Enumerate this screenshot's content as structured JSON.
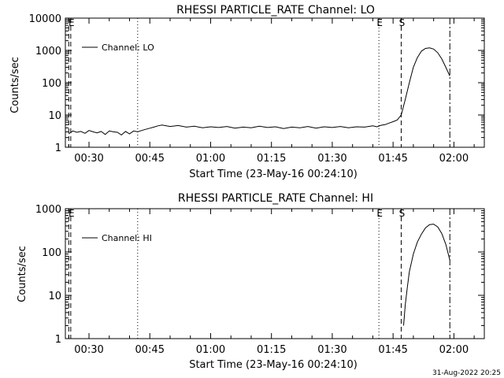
{
  "footer": {
    "timestamp": "31-Aug-2022 20:25"
  },
  "chart_data": [
    {
      "type": "line",
      "title": "RHESSI PARTICLE_RATE Channel: LO",
      "xlabel": "Start Time (23-May-16 00:24:10)",
      "ylabel": "Counts/sec",
      "yscale": "log",
      "ylim": [
        1,
        10000
      ],
      "xlim_minutes": [
        24.17,
        127.5
      ],
      "x_ticks": [
        30,
        45,
        60,
        75,
        90,
        105,
        120
      ],
      "x_tick_labels": [
        "00:30",
        "00:45",
        "01:00",
        "01:15",
        "01:30",
        "01:45",
        "02:00"
      ],
      "y_ticks": [
        1,
        10,
        100,
        1000,
        10000
      ],
      "y_tick_labels": [
        "1",
        "10",
        "100",
        "1000",
        "10000"
      ],
      "legend": {
        "label": "Channel: LO",
        "position": "top-left"
      },
      "markers": [
        {
          "x": 25.0,
          "style": "dashed",
          "label": ""
        },
        {
          "x": 25.5,
          "style": "dashed",
          "label": "E"
        },
        {
          "x": 42.0,
          "style": "dotted",
          "label": ""
        },
        {
          "x": 101.5,
          "style": "dotted",
          "label": "E"
        },
        {
          "x": 107.0,
          "style": "dashed",
          "label": "S"
        },
        {
          "x": 119.0,
          "style": "dashdot",
          "label": ""
        }
      ],
      "series": [
        {
          "name": "Channel: LO",
          "x": [
            25.0,
            26,
            27,
            28,
            29,
            30,
            31,
            32,
            33,
            34,
            35,
            36,
            37,
            38,
            39,
            40,
            41,
            42,
            43,
            44,
            45,
            46,
            47,
            48,
            50,
            52,
            54,
            56,
            58,
            60,
            62,
            64,
            66,
            68,
            70,
            72,
            74,
            76,
            78,
            80,
            82,
            84,
            86,
            88,
            90,
            92,
            94,
            96,
            98,
            100,
            101,
            102,
            103,
            104,
            105,
            106,
            107,
            108,
            109,
            110,
            111,
            112,
            113,
            114,
            115,
            116,
            117,
            118,
            119
          ],
          "y": [
            2.6,
            3.2,
            2.9,
            3.1,
            2.7,
            3.3,
            3.0,
            2.8,
            3.1,
            2.5,
            3.2,
            3.0,
            2.9,
            2.4,
            3.1,
            2.6,
            3.2,
            3.0,
            3.3,
            3.6,
            3.9,
            4.2,
            4.6,
            4.9,
            4.4,
            4.7,
            4.2,
            4.5,
            4.0,
            4.3,
            4.1,
            4.4,
            3.9,
            4.2,
            4.0,
            4.5,
            4.1,
            4.3,
            3.8,
            4.2,
            4.0,
            4.4,
            3.9,
            4.3,
            4.1,
            4.4,
            4.0,
            4.3,
            4.2,
            4.6,
            4.3,
            4.8,
            5.0,
            5.6,
            6.2,
            7.0,
            10,
            30,
            100,
            300,
            600,
            950,
            1150,
            1200,
            1100,
            850,
            550,
            300,
            160
          ]
        }
      ]
    },
    {
      "type": "line",
      "title": "RHESSI PARTICLE_RATE Channel: HI",
      "xlabel": "Start Time (23-May-16 00:24:10)",
      "ylabel": "Counts/sec",
      "yscale": "log",
      "ylim": [
        1,
        1000
      ],
      "xlim_minutes": [
        24.17,
        127.5
      ],
      "x_ticks": [
        30,
        45,
        60,
        75,
        90,
        105,
        120
      ],
      "x_tick_labels": [
        "00:30",
        "00:45",
        "01:00",
        "01:15",
        "01:30",
        "01:45",
        "02:00"
      ],
      "y_ticks": [
        1,
        10,
        100,
        1000
      ],
      "y_tick_labels": [
        "1",
        "10",
        "100",
        "1000"
      ],
      "legend": {
        "label": "Channel: HI",
        "position": "top-left"
      },
      "markers": [
        {
          "x": 25.0,
          "style": "dashed",
          "label": ""
        },
        {
          "x": 25.5,
          "style": "dashed",
          "label": "E"
        },
        {
          "x": 42.0,
          "style": "dotted",
          "label": ""
        },
        {
          "x": 101.5,
          "style": "dotted",
          "label": "E"
        },
        {
          "x": 107.0,
          "style": "dashed",
          "label": "S"
        },
        {
          "x": 119.0,
          "style": "dashdot",
          "label": ""
        }
      ],
      "series": [
        {
          "name": "Channel: HI",
          "x": [
            107.6,
            108,
            108.5,
            109,
            110,
            111,
            112,
            113,
            114,
            115,
            116,
            117,
            118,
            119
          ],
          "y": [
            2,
            6,
            15,
            35,
            90,
            170,
            260,
            360,
            430,
            440,
            380,
            270,
            150,
            65
          ]
        }
      ]
    }
  ]
}
